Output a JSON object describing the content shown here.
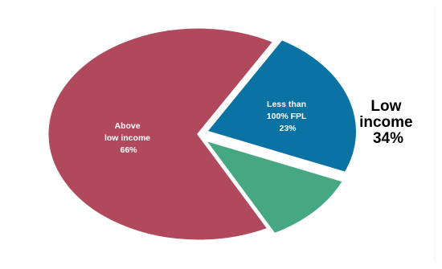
{
  "chart_data": {
    "type": "pie",
    "title": "",
    "slices": [
      {
        "label": [
          "Above",
          "low income",
          "66%"
        ],
        "value": 66,
        "color": "#b0495c"
      },
      {
        "label": [
          "Less than",
          "100% FPL",
          "23%"
        ],
        "value": 23,
        "color": "#0a73a4"
      },
      {
        "label": [],
        "value": 11,
        "color": "#46a882"
      }
    ],
    "callout": {
      "lines": [
        "Low",
        "income",
        "34%"
      ],
      "covers": "Less than 100% FPL + remaining green slice"
    }
  }
}
